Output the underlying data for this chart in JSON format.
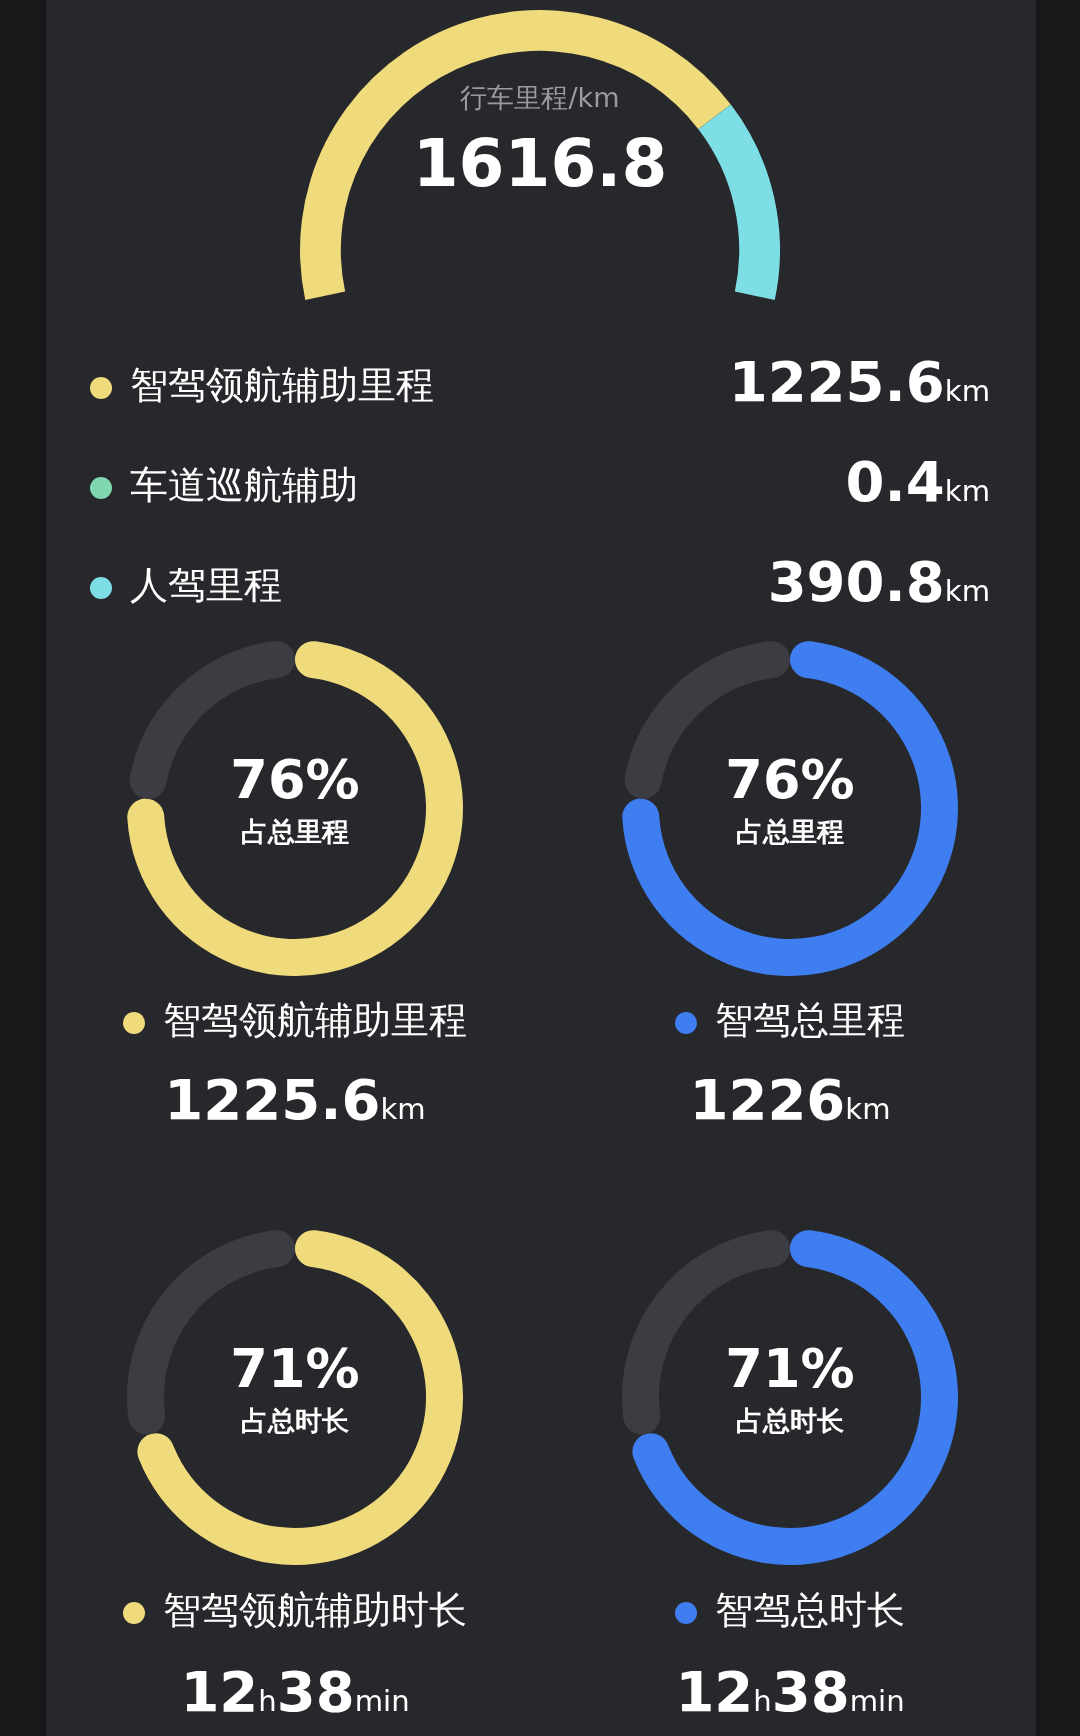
{
  "chart_data": [
    {
      "type": "donut",
      "title": "行车里程/km",
      "categories": [
        "智驾领航辅助里程",
        "车道巡航辅助",
        "人驾里程"
      ],
      "values": [
        1225.6,
        0.4,
        390.8
      ],
      "colors": [
        "#efda7c",
        "#7fd8b0",
        "#7ddfe5"
      ],
      "value_labels": [
        "1225.6km",
        "0.4km",
        "390.8km"
      ],
      "annotations": [
        "1616.8"
      ],
      "legend": "bottom"
    },
    {
      "type": "donut",
      "categories": [
        "智驾领航辅助里程",
        null
      ],
      "values": [
        76,
        24
      ],
      "colors": [
        "#efda7c",
        "#3c3d42"
      ],
      "value_labels": [
        "76%",
        null
      ],
      "annotations": [
        "占总里程",
        "1225.6km"
      ],
      "legend": "bottom"
    },
    {
      "type": "donut",
      "categories": [
        "智驾总里程",
        null
      ],
      "values": [
        76,
        24
      ],
      "colors": [
        "#3f7ef0",
        "#3c3d42"
      ],
      "value_labels": [
        "76%",
        null
      ],
      "annotations": [
        "占总里程",
        "1226km"
      ],
      "legend": "bottom"
    },
    {
      "type": "donut",
      "categories": [
        "智驾领航辅助时长",
        null
      ],
      "values": [
        71,
        29
      ],
      "colors": [
        "#efda7c",
        "#3c3d42"
      ],
      "value_labels": [
        "71%",
        null
      ],
      "annotations": [
        "占总时长",
        "12h38min"
      ],
      "legend": "bottom"
    },
    {
      "type": "donut",
      "categories": [
        "智驾总时长",
        null
      ],
      "values": [
        71,
        29
      ],
      "colors": [
        "#3f7ef0",
        "#3c3d42"
      ],
      "value_labels": [
        "71%",
        null
      ],
      "annotations": [
        "占总时长",
        "12h38min"
      ],
      "legend": "bottom"
    }
  ]
}
